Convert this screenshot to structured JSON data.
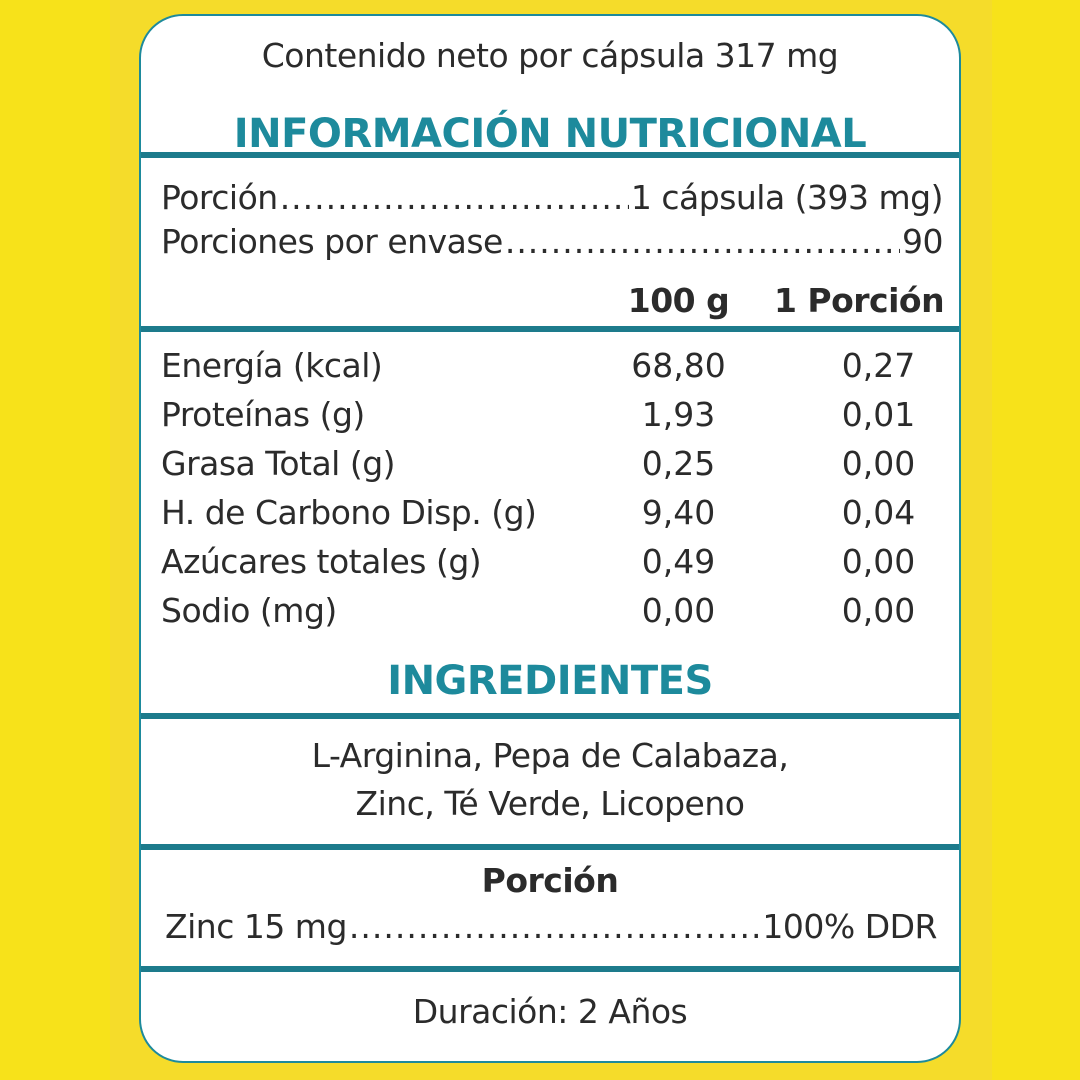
{
  "header": {
    "net_content": "Contenido neto por cápsula 317 mg",
    "title": "INFORMACIÓN NUTRICIONAL"
  },
  "serving": {
    "portion_label": "Porción",
    "portion_value": "1 cápsula (393 mg)",
    "servings_label": "Porciones por envase",
    "servings_value": "90"
  },
  "columns": {
    "col1": "100 g",
    "col2": "1 Porción"
  },
  "nutrients": [
    {
      "label": "Energía (kcal)",
      "per100": "68,80",
      "perPortion": "0,27"
    },
    {
      "label": "Proteínas (g)",
      "per100": "1,93",
      "perPortion": "0,01"
    },
    {
      "label": "Grasa Total (g)",
      "per100": "0,25",
      "perPortion": "0,00"
    },
    {
      "label": "H. de Carbono Disp. (g)",
      "per100": "9,40",
      "perPortion": "0,04"
    },
    {
      "label": "Azúcares totales (g)",
      "per100": "0,49",
      "perPortion": "0,00"
    },
    {
      "label": "Sodio (mg)",
      "per100": "0,00",
      "perPortion": "0,00"
    }
  ],
  "ingredients": {
    "title": "INGREDIENTES",
    "line1": "L-Arginina, Pepa de Calabaza,",
    "line2": "Zinc, Té Verde, Licopeno"
  },
  "portion_box": {
    "title": "Porción",
    "item_label": "Zinc 15 mg",
    "item_value": "100% DDR"
  },
  "footer": {
    "duration": "Duración: 2 Años"
  },
  "colors": {
    "accent": "#1d8a9c",
    "background": "#f5dc2a"
  }
}
